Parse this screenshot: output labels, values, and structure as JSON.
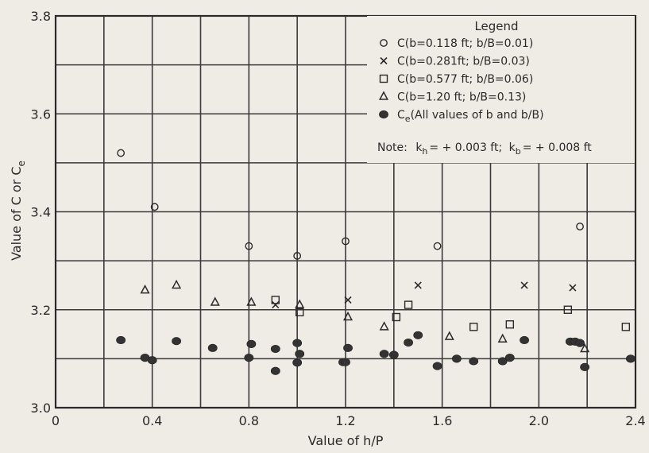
{
  "chart_data": {
    "type": "scatter",
    "title": "",
    "xlabel": "Value of h/P",
    "ylabel": "Value of C or C",
    "ylabel_subscript": "e",
    "xlim": [
      0,
      2.4
    ],
    "ylim": [
      3.0,
      3.8
    ],
    "xticks": [
      {
        "value": 0,
        "label": "0"
      },
      {
        "value": 0.4,
        "label": "0.4"
      },
      {
        "value": 0.8,
        "label": "0.8"
      },
      {
        "value": 1.2,
        "label": "1.2"
      },
      {
        "value": 1.6,
        "label": "1.6"
      },
      {
        "value": 2.0,
        "label": "2.0"
      },
      {
        "value": 2.4,
        "label": "2.4"
      }
    ],
    "yticks": [
      {
        "value": 3.0,
        "label": "3.0"
      },
      {
        "value": 3.2,
        "label": "3.2"
      },
      {
        "value": 3.4,
        "label": "3.4"
      },
      {
        "value": 3.6,
        "label": "3.6"
      },
      {
        "value": 3.8,
        "label": "3.8"
      }
    ],
    "grid": true,
    "legend_position": "top-right",
    "legend": {
      "title": "Legend",
      "entries": [
        {
          "marker": "open-circle",
          "label": "C(b=0.118 ft; b/B=0.01)",
          "subscript": ""
        },
        {
          "marker": "x",
          "label": "C(b=0.281ft; b/B=0.03)",
          "subscript": ""
        },
        {
          "marker": "open-square",
          "label": "C(b=0.577 ft; b/B=0.06)",
          "subscript": ""
        },
        {
          "marker": "open-triangle",
          "label": "C(b=1.20 ft; b/B=0.13)",
          "subscript": ""
        },
        {
          "marker": "filled-circle",
          "label": "C",
          "subscript": "e",
          "suffix": "(All values of b and b/B)"
        }
      ],
      "note": {
        "prefix": "Note:",
        "k1": "k",
        "k1_sub": "h",
        "k1_val": "= + 0.003 ft;",
        "k2": "k",
        "k2_sub": "b",
        "k2_val": "= + 0.008 ft"
      }
    },
    "series": [
      {
        "marker": "open-circle",
        "x": [
          0.27,
          0.41,
          0.8,
          1.0,
          1.2,
          1.58,
          2.17
        ],
        "y": [
          3.52,
          3.41,
          3.33,
          3.31,
          3.34,
          3.33,
          3.37
        ]
      },
      {
        "marker": "x",
        "x": [
          0.91,
          1.21,
          1.5,
          1.94,
          2.14
        ],
        "y": [
          3.21,
          3.22,
          3.25,
          3.25,
          3.245
        ]
      },
      {
        "marker": "open-square",
        "x": [
          0.91,
          1.01,
          1.41,
          1.46,
          1.73,
          1.88,
          2.12,
          2.36
        ],
        "y": [
          3.22,
          3.195,
          3.185,
          3.21,
          3.165,
          3.17,
          3.2,
          3.165
        ]
      },
      {
        "marker": "open-triangle",
        "x": [
          0.37,
          0.5,
          0.66,
          0.81,
          1.01,
          1.21,
          1.36,
          1.63,
          1.85,
          2.19
        ],
        "y": [
          3.24,
          3.25,
          3.215,
          3.215,
          3.21,
          3.185,
          3.165,
          3.145,
          3.14,
          3.12
        ]
      },
      {
        "marker": "filled-circle",
        "x": [
          0.27,
          0.37,
          0.4,
          0.5,
          0.65,
          0.8,
          0.81,
          0.91,
          0.91,
          1.0,
          1.0,
          1.01,
          1.19,
          1.2,
          1.21,
          1.36,
          1.4,
          1.46,
          1.5,
          1.58,
          1.66,
          1.73,
          1.85,
          1.88,
          1.94,
          2.13,
          2.15,
          2.17,
          2.19,
          2.38
        ],
        "y": [
          3.138,
          3.102,
          3.097,
          3.136,
          3.122,
          3.102,
          3.13,
          3.075,
          3.12,
          3.092,
          3.132,
          3.11,
          3.093,
          3.093,
          3.122,
          3.11,
          3.108,
          3.133,
          3.148,
          3.085,
          3.1,
          3.095,
          3.095,
          3.102,
          3.138,
          3.135,
          3.135,
          3.132,
          3.083,
          3.1
        ]
      }
    ]
  }
}
